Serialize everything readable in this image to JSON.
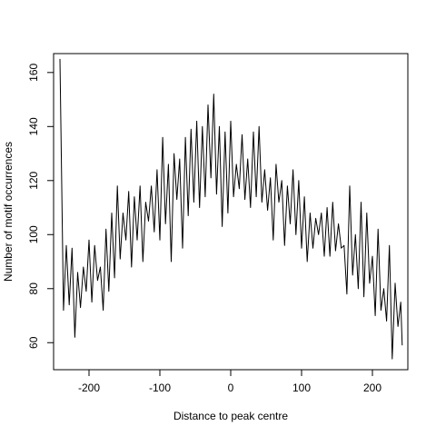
{
  "chart_data": {
    "type": "line",
    "title": "",
    "xlabel": "Distance to peak centre",
    "ylabel": "Number of motif occurrences",
    "xlim": [
      -250,
      250
    ],
    "ylim": [
      50,
      167
    ],
    "x_ticks": [
      -200,
      -100,
      0,
      100,
      200
    ],
    "y_ticks": [
      60,
      80,
      100,
      120,
      140,
      160
    ],
    "grid": false,
    "legend": "none",
    "line_color": "#000000",
    "series": [
      {
        "x": [
          -241,
          -236,
          -232,
          -228,
          -224,
          -220,
          -216,
          -212,
          -208,
          -204,
          -200,
          -196,
          -192,
          -188,
          -184,
          -180,
          -176,
          -172,
          -168,
          -164,
          -160,
          -156,
          -152,
          -148,
          -144,
          -140,
          -136,
          -132,
          -128,
          -124,
          -120,
          -116,
          -112,
          -108,
          -104,
          -100,
          -96,
          -92,
          -88,
          -84,
          -80,
          -76,
          -72,
          -68,
          -64,
          -60,
          -56,
          -52,
          -48,
          -44,
          -40,
          -36,
          -32,
          -28,
          -24,
          -20,
          -16,
          -12,
          -8,
          -4,
          0,
          4,
          8,
          12,
          16,
          20,
          24,
          28,
          32,
          36,
          40,
          44,
          48,
          52,
          56,
          60,
          64,
          68,
          72,
          76,
          80,
          84,
          88,
          92,
          96,
          100,
          104,
          108,
          112,
          116,
          120,
          124,
          128,
          132,
          136,
          140,
          144,
          148,
          152,
          156,
          160,
          164,
          168,
          172,
          176,
          180,
          184,
          188,
          192,
          196,
          200,
          204,
          208,
          212,
          216,
          220,
          224,
          228,
          232,
          236,
          240,
          242
        ],
        "values": [
          165,
          72,
          96,
          74,
          95,
          62,
          86,
          73,
          88,
          79,
          98,
          75,
          96,
          83,
          88,
          72,
          102,
          79,
          108,
          84,
          118,
          91,
          108,
          98,
          116,
          88,
          114,
          98,
          118,
          90,
          112,
          105,
          118,
          101,
          124,
          98,
          136,
          104,
          126,
          90,
          130,
          113,
          128,
          95,
          136,
          107,
          139,
          112,
          142,
          110,
          140,
          114,
          148,
          121,
          152,
          115,
          140,
          103,
          138,
          108,
          142,
          114,
          126,
          117,
          137,
          113,
          128,
          110,
          138,
          114,
          140,
          112,
          124,
          109,
          121,
          98,
          126,
          112,
          120,
          96,
          118,
          104,
          124,
          100,
          120,
          95,
          114,
          90,
          108,
          95,
          106,
          100,
          108,
          92,
          110,
          92,
          112,
          94,
          104,
          95,
          96,
          78,
          118,
          85,
          100,
          80,
          112,
          77,
          108,
          82,
          92,
          70,
          102,
          72,
          80,
          68,
          96,
          54,
          82,
          66,
          75,
          59
        ]
      }
    ]
  }
}
